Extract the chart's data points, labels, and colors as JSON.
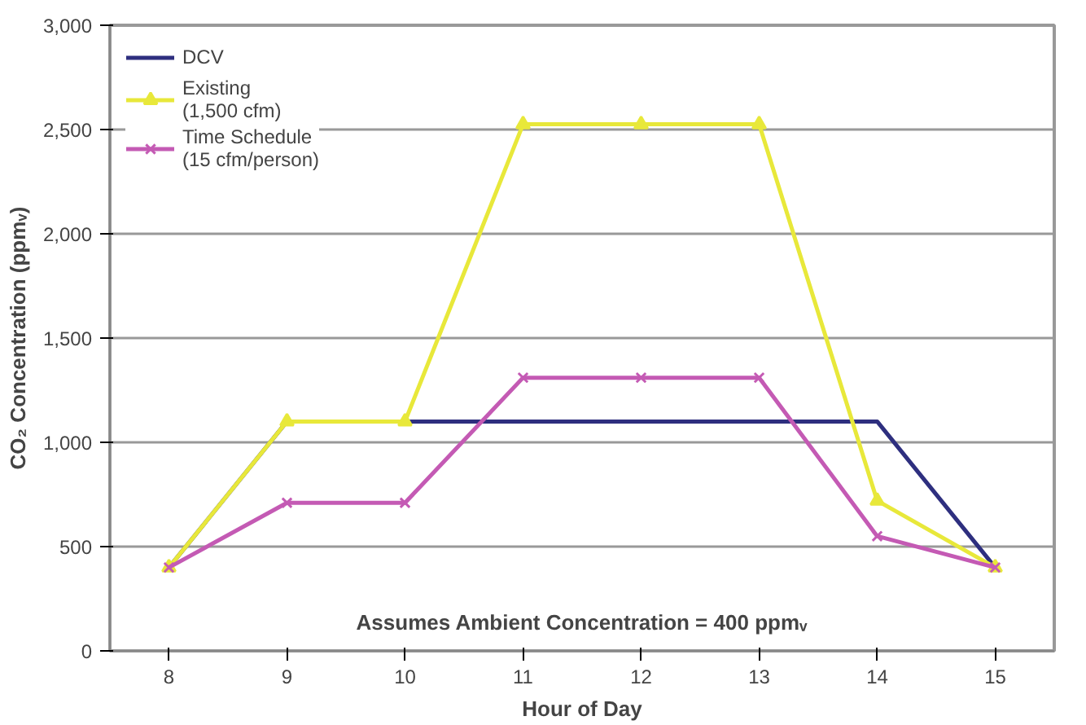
{
  "chart_data": {
    "type": "line",
    "xlabel": "Hour of Day",
    "ylabel": "CO₂ Concentration (ppmᵥ)",
    "categories": [
      "8",
      "9",
      "10",
      "11",
      "12",
      "13",
      "14",
      "15"
    ],
    "ylim": [
      0,
      3000
    ],
    "yticks": [
      0,
      {
        "value": 500,
        "label": "500"
      },
      {
        "value": 1000,
        "label": "1,000"
      },
      {
        "value": 1500,
        "label": "1,500"
      },
      {
        "value": 2000,
        "label": "2,000"
      },
      {
        "value": 2500,
        "label": "2,500"
      },
      {
        "value": 3000,
        "label": "3,000"
      }
    ],
    "grid": "y",
    "legend": "top left",
    "annotations": [
      "Assumes Ambient Concentration = 400 ppmᵥ"
    ],
    "series": [
      {
        "name": "DCV",
        "color": "#2e2f7f",
        "marker": "none",
        "values": [
          400,
          1100,
          1100,
          1100,
          1100,
          1100,
          1100,
          400
        ]
      },
      {
        "name": "Existing\n(1,500 cfm)",
        "color": "#e8e83a",
        "marker": "triangle",
        "values": [
          400,
          1100,
          1100,
          2525,
          2525,
          2525,
          720,
          400
        ]
      },
      {
        "name": "Time Schedule\n(15 cfm/person)",
        "color": "#c45ab4",
        "marker": "cross",
        "values": [
          400,
          710,
          710,
          1310,
          1310,
          1310,
          550,
          400
        ]
      }
    ]
  }
}
